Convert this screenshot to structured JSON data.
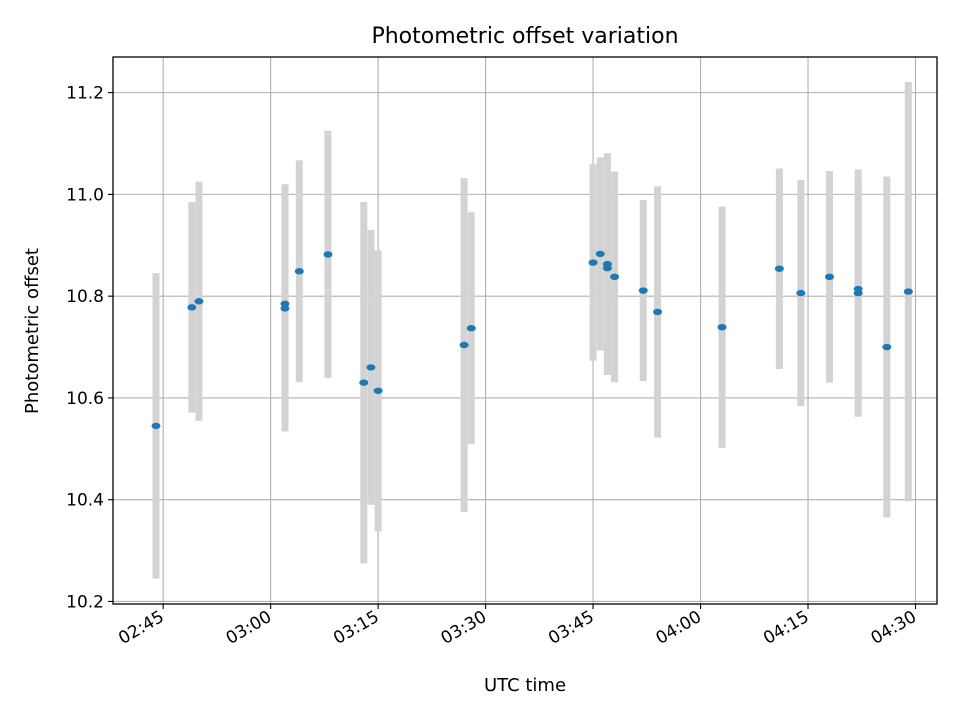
{
  "chart_data": {
    "type": "scatter",
    "title": "Photometric offset variation",
    "xlabel": "UTC time",
    "ylabel": "Photometric offset",
    "x_unit": "UTC HH:MM",
    "xlim": [
      "02:38",
      "04:33"
    ],
    "ylim": [
      10.195,
      11.27
    ],
    "grid": true,
    "x_ticks": [
      "02:45",
      "03:00",
      "03:15",
      "03:30",
      "03:45",
      "04:00",
      "04:15",
      "04:30"
    ],
    "y_ticks": [
      "10.2",
      "10.4",
      "10.6",
      "10.8",
      "11.0",
      "11.2"
    ],
    "colors": {
      "point": "#1f77b4",
      "errorbar": "#d3d3d3",
      "grid": "#b0b0b0"
    },
    "series": [
      {
        "points": [
          {
            "x": "02:44",
            "y": 10.545,
            "err": 0.3
          },
          {
            "x": "02:49",
            "y": 10.778,
            "err": 0.207
          },
          {
            "x": "02:50",
            "y": 10.79,
            "err": 0.235
          },
          {
            "x": "03:02",
            "y": 10.785,
            "err": 0.235
          },
          {
            "x": "03:02",
            "y": 10.776,
            "err": 0.242
          },
          {
            "x": "03:04",
            "y": 10.849,
            "err": 0.218
          },
          {
            "x": "03:08",
            "y": 10.882,
            "err": 0.243
          },
          {
            "x": "03:13",
            "y": 10.63,
            "err": 0.355
          },
          {
            "x": "03:14",
            "y": 10.66,
            "err": 0.27
          },
          {
            "x": "03:15",
            "y": 10.614,
            "err": 0.276
          },
          {
            "x": "03:27",
            "y": 10.704,
            "err": 0.328
          },
          {
            "x": "03:28",
            "y": 10.737,
            "err": 0.228
          },
          {
            "x": "03:45",
            "y": 10.866,
            "err": 0.193
          },
          {
            "x": "03:46",
            "y": 10.883,
            "err": 0.19
          },
          {
            "x": "03:47",
            "y": 10.863,
            "err": 0.218
          },
          {
            "x": "03:47",
            "y": 10.855,
            "err": 0.21
          },
          {
            "x": "03:48",
            "y": 10.838,
            "err": 0.207
          },
          {
            "x": "03:52",
            "y": 10.811,
            "err": 0.178
          },
          {
            "x": "03:54",
            "y": 10.769,
            "err": 0.247
          },
          {
            "x": "04:03",
            "y": 10.739,
            "err": 0.237
          },
          {
            "x": "04:11",
            "y": 10.854,
            "err": 0.197
          },
          {
            "x": "04:14",
            "y": 10.806,
            "err": 0.222
          },
          {
            "x": "04:18",
            "y": 10.838,
            "err": 0.208
          },
          {
            "x": "04:22",
            "y": 10.806,
            "err": 0.243
          },
          {
            "x": "04:22",
            "y": 10.814,
            "err": 0.21
          },
          {
            "x": "04:26",
            "y": 10.7,
            "err": 0.335
          },
          {
            "x": "04:29",
            "y": 10.809,
            "err": 0.412
          }
        ]
      }
    ]
  }
}
